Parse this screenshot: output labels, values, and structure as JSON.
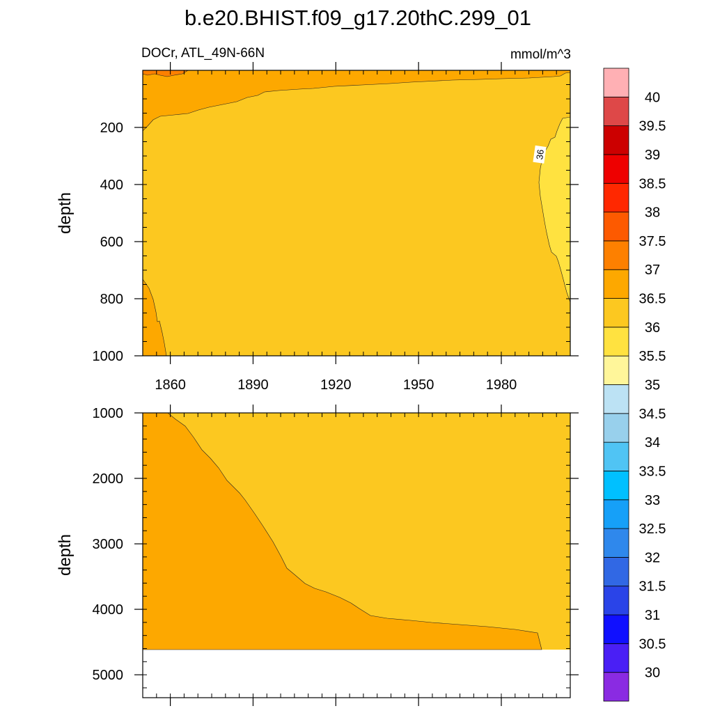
{
  "chart_data": {
    "type": "contour",
    "title": "b.e20.BHIST.f09_g17.20thC.299_01",
    "subtitle_left": "DOCr, ATL_49N-66N",
    "subtitle_right": "mmol/m^3",
    "colorbar": {
      "levels": [
        30,
        30.5,
        31,
        31.5,
        32,
        32.5,
        33,
        33.5,
        34,
        34.5,
        35,
        35.5,
        36,
        36.5,
        37,
        37.5,
        38,
        38.5,
        39,
        39.5,
        40
      ],
      "level_labels": [
        "30",
        "30.5",
        "31",
        "31.5",
        "32",
        "32.5",
        "33",
        "33.5",
        "34",
        "34.5",
        "35",
        "35.5",
        "36",
        "36.5",
        "37",
        "37.5",
        "38",
        "38.5",
        "39",
        "39.5",
        "40"
      ],
      "colors": [
        "#8a2be2",
        "#4a1ff5",
        "#1010ff",
        "#2a44e8",
        "#3168e4",
        "#2f88ec",
        "#16a0f8",
        "#00c0ff",
        "#50c4f4",
        "#98d0ec",
        "#bce2f4",
        "#fff69a",
        "#ffe240",
        "#fcc820",
        "#fda800",
        "#fd8000",
        "#fd5a00",
        "#ff2800",
        "#ee0000",
        "#cc0000",
        "#de4848",
        "#ffb0b4"
      ]
    },
    "panels": [
      {
        "name": "upper",
        "xlim": [
          1850,
          2005
        ],
        "ylim": [
          1000,
          0
        ],
        "ylabel": "depth",
        "yticks": [
          200,
          400,
          600,
          800,
          1000
        ],
        "yticklabels": [
          "200",
          "400",
          "600",
          "800",
          "1000"
        ],
        "xticks": [
          1860,
          1890,
          1920,
          1950,
          1980
        ],
        "xticklabels": [
          "1860",
          "1890",
          "1920",
          "1950",
          "1980"
        ],
        "contour_labels": [
          {
            "text": "36",
            "x": 1993,
            "y": 290
          }
        ]
      },
      {
        "name": "lower",
        "xlim": [
          1850,
          2005
        ],
        "ylim": [
          5350,
          1000
        ],
        "ylabel": "depth",
        "yticks": [
          1000,
          2000,
          3000,
          4000,
          5000
        ],
        "yticklabels": [
          "1000",
          "2000",
          "3000",
          "4000",
          "5000"
        ],
        "data_bottom": 4620
      }
    ]
  }
}
